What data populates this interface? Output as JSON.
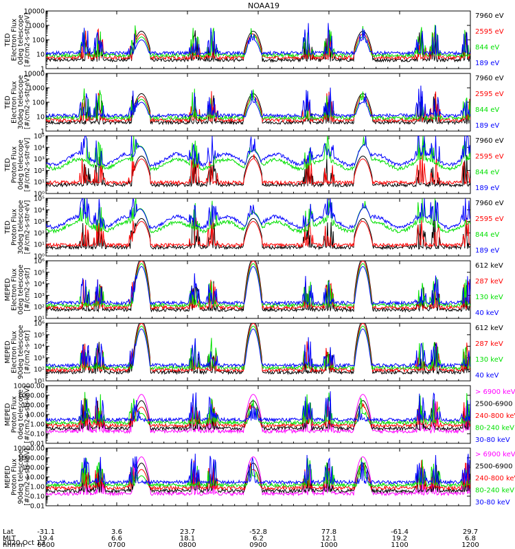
{
  "title": "NOAA19",
  "date": "2020 Oct 13",
  "colors": {
    "black": "#000000",
    "red": "#ff0000",
    "green": "#00e000",
    "blue": "#0000ff",
    "magenta": "#ff00ff"
  },
  "chart_data": {
    "type": "line",
    "x_range_hours": [
      6,
      12
    ],
    "x_axis_rows": [
      {
        "label": "Lat",
        "ticks": [
          "-31.1",
          "3.6",
          "23.7",
          "-52.8",
          "77.8",
          "-61.4",
          "29.7"
        ]
      },
      {
        "label": "MLT",
        "ticks": [
          "19.4",
          "6.6",
          "18.1",
          "6.2",
          "12.1",
          "19.2",
          "6.8"
        ]
      },
      {
        "label": "hhmm",
        "ticks": [
          "0600",
          "0700",
          "0800",
          "0900",
          "1000",
          "1100",
          "1200"
        ]
      }
    ],
    "panels": [
      {
        "id": "ted-e-0",
        "ylabel": [
          "TED",
          "Electron Flux",
          "0deg telescope",
          "[#/cm2-s-str-eV]"
        ],
        "log_range": [
          0,
          4
        ],
        "tick_labels": [
          "1",
          "10",
          "100",
          "1000",
          "10000"
        ],
        "legend": [
          {
            "text": "7960 eV",
            "color": "black"
          },
          {
            "text": "2595 eV",
            "color": "red"
          },
          {
            "text": "844 eV",
            "color": "green"
          },
          {
            "text": "189 eV",
            "color": "blue"
          }
        ]
      },
      {
        "id": "ted-e-30",
        "ylabel": [
          "TED",
          "Electron Flux",
          "30deg telescope",
          "[#/cm2-s-str-eV]"
        ],
        "log_range": [
          0,
          4
        ],
        "tick_labels": [
          "1",
          "10",
          "100",
          "1000",
          "10000"
        ],
        "legend": [
          {
            "text": "7960 eV",
            "color": "black"
          },
          {
            "text": "2595 eV",
            "color": "red"
          },
          {
            "text": "844 eV",
            "color": "green"
          },
          {
            "text": "189 eV",
            "color": "blue"
          }
        ]
      },
      {
        "id": "ted-p-0",
        "ylabel": [
          "TED",
          "Proton Flux",
          "0deg telescope",
          "[#/cm2-s-str-eV]"
        ],
        "log_range": [
          0,
          5
        ],
        "tick_labels": [
          "10⁰",
          "10¹",
          "10²",
          "10³",
          "10⁴",
          "10⁵"
        ],
        "legend": [
          {
            "text": "7960 eV",
            "color": "black"
          },
          {
            "text": "2595 eV",
            "color": "red"
          },
          {
            "text": "844 eV",
            "color": "green"
          },
          {
            "text": "189 eV",
            "color": "blue"
          }
        ]
      },
      {
        "id": "ted-p-30",
        "ylabel": [
          "TED",
          "Proton Flux",
          "30deg telescope",
          "[#/cm2-s-str-eV]"
        ],
        "log_range": [
          0,
          5
        ],
        "tick_labels": [
          "10⁰",
          "10¹",
          "10²",
          "10³",
          "10⁴",
          "10⁵"
        ],
        "legend": [
          {
            "text": "7960 eV",
            "color": "black"
          },
          {
            "text": "2595 eV",
            "color": "red"
          },
          {
            "text": "844 eV",
            "color": "green"
          },
          {
            "text": "189 eV",
            "color": "blue"
          }
        ]
      },
      {
        "id": "meped-e-0",
        "ylabel": [
          "MEPED",
          "Electron Flux",
          "0deg telescope",
          "[#/cm2-s-str]"
        ],
        "log_range": [
          1,
          6
        ],
        "tick_labels": [
          "10¹",
          "10²",
          "10³",
          "10⁴",
          "10⁵",
          "10⁶"
        ],
        "legend": [
          {
            "text": "612 keV",
            "color": "black"
          },
          {
            "text": "287 keV",
            "color": "red"
          },
          {
            "text": "130 keV",
            "color": "green"
          },
          {
            "text": "40 keV",
            "color": "blue"
          }
        ]
      },
      {
        "id": "meped-e-90",
        "ylabel": [
          "MEPED",
          "Electron Flux",
          "90deg telescope",
          "[#/cm2-s-str]"
        ],
        "log_range": [
          1,
          6
        ],
        "tick_labels": [
          "10¹",
          "10²",
          "10³",
          "10⁴",
          "10⁵",
          "10⁶"
        ],
        "legend": [
          {
            "text": "612 keV",
            "color": "black"
          },
          {
            "text": "287 keV",
            "color": "red"
          },
          {
            "text": "130 keV",
            "color": "green"
          },
          {
            "text": "40 keV",
            "color": "blue"
          }
        ]
      },
      {
        "id": "meped-p-0",
        "ylabel": [
          "MEPED",
          "Proton Flux",
          "0deg telescope",
          "[#/cm2-s-str-keV]"
        ],
        "log_range": [
          -2,
          4
        ],
        "tick_labels": [
          "0.01",
          "0.10",
          "1.00",
          "10.00",
          "100.00",
          "1000.00",
          "10000.00"
        ],
        "legend": [
          {
            "text": "> 6900 keV",
            "color": "magenta"
          },
          {
            "text": "2500-6900",
            "color": "black"
          },
          {
            "text": "240-800 keV",
            "color": "red"
          },
          {
            "text": "80-240 keV",
            "color": "green"
          },
          {
            "text": "30-80 keV",
            "color": "blue"
          }
        ]
      },
      {
        "id": "meped-p-90",
        "ylabel": [
          "MEPED",
          "Proton Flux",
          "90deg telescope",
          "[#/cm2-s-str-keV]"
        ],
        "log_range": [
          -2,
          4
        ],
        "tick_labels": [
          "0.01",
          "0.10",
          "1.00",
          "10.00",
          "100.00",
          "1000.00",
          "10000.00"
        ],
        "legend": [
          {
            "text": "> 6900 keV",
            "color": "magenta"
          },
          {
            "text": "2500-6900",
            "color": "black"
          },
          {
            "text": "240-800 keV",
            "color": "red"
          },
          {
            "text": "80-240 keV",
            "color": "green"
          },
          {
            "text": "30-80 keV",
            "color": "blue"
          }
        ]
      }
    ],
    "passes_hours": [
      6.55,
      6.75,
      7.25,
      8.1,
      8.35,
      8.92,
      9.7,
      10.0,
      10.48,
      11.3,
      11.5,
      11.95
    ],
    "radiation_belt_centers_hours": [
      7.35,
      8.93,
      10.48
    ]
  }
}
